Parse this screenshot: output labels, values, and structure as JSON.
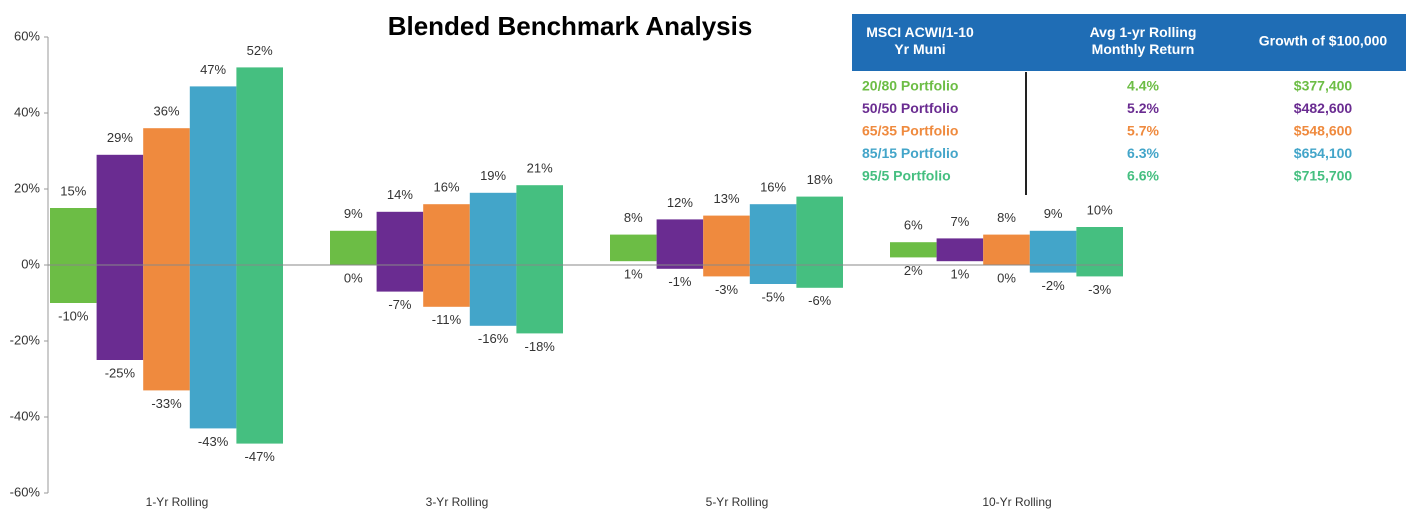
{
  "chart_data": {
    "type": "floating_bar",
    "title": "Blended Benchmark Analysis",
    "categories": [
      "1-Yr Rolling",
      "3-Yr Rolling",
      "5-Yr Rolling",
      "10-Yr Rolling"
    ],
    "series": [
      {
        "color": "#6cbd45",
        "values": [
          15,
          9,
          8,
          6
        ],
        "value_labels": [
          "15%",
          "9%",
          "8%",
          "6%"
        ],
        "low_values": [
          -10,
          0,
          1,
          2
        ],
        "low_labels": [
          "-10%",
          "0%",
          "1%",
          "2%"
        ]
      },
      {
        "color": "#6a2c91",
        "values": [
          29,
          14,
          12,
          7
        ],
        "value_labels": [
          "29%",
          "14%",
          "12%",
          "7%"
        ],
        "low_values": [
          -25,
          -7,
          -1,
          1
        ],
        "low_labels": [
          "-25%",
          "-7%",
          "-1%",
          "1%"
        ]
      },
      {
        "color": "#ef8a3e",
        "values": [
          36,
          16,
          13,
          8
        ],
        "value_labels": [
          "36%",
          "16%",
          "13%",
          "8%"
        ],
        "low_values": [
          -33,
          -11,
          -3,
          0
        ],
        "low_labels": [
          "-33%",
          "-11%",
          "-3%",
          "0%"
        ]
      },
      {
        "color": "#43a5c9",
        "values": [
          47,
          19,
          16,
          9
        ],
        "value_labels": [
          "47%",
          "19%",
          "16%",
          "9%"
        ],
        "low_values": [
          -43,
          -16,
          -5,
          -2
        ],
        "low_labels": [
          "-43%",
          "-16%",
          "-5%",
          "-2%"
        ]
      },
      {
        "color": "#45bf80",
        "values": [
          52,
          21,
          18,
          10
        ],
        "value_labels": [
          "52%",
          "21%",
          "18%",
          "10%"
        ],
        "low_values": [
          -47,
          -18,
          -6,
          -3
        ],
        "low_labels": [
          "-47%",
          "-18%",
          "-6%",
          "-3%"
        ]
      }
    ],
    "ylim": [
      -60,
      60
    ],
    "yticks": [
      {
        "value": -60,
        "label": "-60%"
      },
      {
        "value": -40,
        "label": "-40%"
      },
      {
        "value": -20,
        "label": "-20%"
      },
      {
        "value": 0,
        "label": "0%"
      },
      {
        "value": 20,
        "label": "20%"
      },
      {
        "value": 40,
        "label": "40%"
      },
      {
        "value": 60,
        "label": "60%"
      }
    ]
  },
  "table": {
    "header": [
      "MSCI ACWI/1-10 Yr Muni",
      "Avg 1-yr Rolling Monthly Return",
      "Growth of $100,000"
    ],
    "rows": [
      [
        "20/80 Portfolio",
        "4.4%",
        "$377,400"
      ],
      [
        "50/50 Portfolio",
        "5.2%",
        "$482,600"
      ],
      [
        "65/35 Portfolio",
        "5.7%",
        "$548,600"
      ],
      [
        "85/15 Portfolio",
        "6.3%",
        "$654,100"
      ],
      [
        "95/5 Portfolio",
        "6.6%",
        "$715,700"
      ]
    ]
  }
}
